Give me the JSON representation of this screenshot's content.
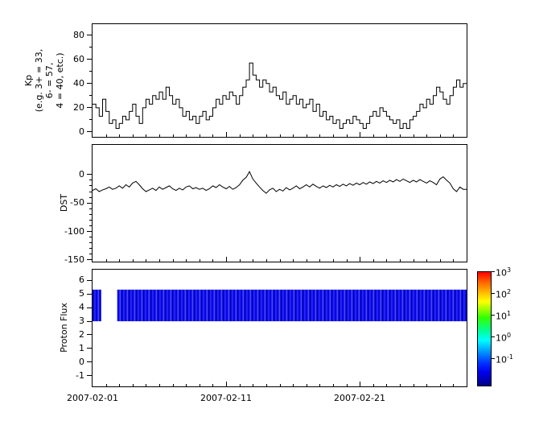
{
  "figure": {
    "background": "#ffffff",
    "axis_color": "#000000",
    "x_axis": {
      "tick_labels": [
        "2007-02-01",
        "2007-02-11",
        "2007-02-21"
      ],
      "tick_days": [
        0,
        10,
        20
      ],
      "minor_tick_every_days": 1,
      "total_days": 28,
      "start_date": "2007-02-01"
    }
  },
  "chart_data": [
    {
      "type": "line",
      "name": "Kp",
      "panel": "kp",
      "step": true,
      "dt_days": 0.25,
      "x_origin_date": "2007-02-01",
      "color": "#000000",
      "ylabel_lines": [
        "Kp",
        "(e.g. 3+ = 33,",
        "6- = 57,",
        "4 = 40, etc.)"
      ],
      "yticks": [
        80,
        60,
        40,
        20,
        0
      ],
      "yminor": [
        70,
        50,
        30,
        10
      ],
      "ylim": [
        -4,
        89
      ],
      "values": [
        23,
        20,
        13,
        27,
        17,
        7,
        10,
        3,
        7,
        13,
        10,
        17,
        23,
        13,
        7,
        20,
        27,
        23,
        30,
        27,
        33,
        27,
        37,
        30,
        23,
        27,
        20,
        13,
        17,
        10,
        13,
        7,
        13,
        17,
        10,
        13,
        20,
        27,
        23,
        30,
        27,
        33,
        30,
        23,
        30,
        37,
        43,
        57,
        47,
        43,
        37,
        43,
        40,
        33,
        37,
        30,
        27,
        33,
        23,
        27,
        30,
        23,
        27,
        20,
        23,
        27,
        17,
        23,
        13,
        17,
        10,
        13,
        7,
        10,
        3,
        7,
        10,
        7,
        13,
        10,
        7,
        3,
        7,
        13,
        17,
        13,
        20,
        17,
        13,
        10,
        7,
        10,
        3,
        7,
        3,
        10,
        13,
        17,
        23,
        20,
        27,
        23,
        30,
        37,
        33,
        27,
        23,
        30,
        37,
        43,
        37,
        40
      ]
    },
    {
      "type": "line",
      "name": "DST",
      "panel": "dst",
      "step": false,
      "dt_days": 0.25,
      "x_origin_date": "2007-02-01",
      "color": "#000000",
      "ylabel": "DST",
      "yticks": [
        0,
        -50,
        -100,
        -150
      ],
      "yminor": [
        -10,
        -20,
        -30,
        -40,
        -60,
        -70,
        -80,
        -90,
        -110,
        -120,
        -130,
        -140
      ],
      "ylim": [
        -153,
        52
      ],
      "values": [
        -28,
        -25,
        -30,
        -27,
        -25,
        -22,
        -26,
        -24,
        -20,
        -24,
        -18,
        -22,
        -15,
        -12,
        -18,
        -25,
        -30,
        -27,
        -24,
        -28,
        -22,
        -26,
        -23,
        -20,
        -25,
        -28,
        -24,
        -27,
        -22,
        -20,
        -25,
        -23,
        -26,
        -24,
        -28,
        -25,
        -20,
        -23,
        -18,
        -22,
        -25,
        -21,
        -26,
        -23,
        -18,
        -10,
        -5,
        5,
        -8,
        -15,
        -22,
        -28,
        -33,
        -27,
        -24,
        -30,
        -26,
        -29,
        -23,
        -27,
        -24,
        -20,
        -25,
        -22,
        -18,
        -22,
        -17,
        -21,
        -24,
        -20,
        -23,
        -19,
        -22,
        -18,
        -21,
        -17,
        -20,
        -16,
        -19,
        -15,
        -18,
        -14,
        -17,
        -13,
        -16,
        -12,
        -15,
        -11,
        -14,
        -10,
        -13,
        -9,
        -12,
        -8,
        -11,
        -14,
        -10,
        -13,
        -9,
        -12,
        -15,
        -11,
        -14,
        -18,
        -8,
        -4,
        -10,
        -15,
        -25,
        -30,
        -22,
        -26
      ]
    },
    {
      "type": "heatmap",
      "name": "Proton Flux",
      "panel": "proton",
      "ylabel": "Proton Flux",
      "yticks": [
        6,
        5,
        4,
        3,
        2,
        1,
        0,
        -1
      ],
      "ylim": [
        -1.8,
        6.8
      ],
      "band_y_range": [
        3.0,
        5.33
      ],
      "segments_days": [
        [
          0,
          0.65
        ],
        [
          1.85,
          28
        ]
      ],
      "approx_log10_flux": -1,
      "base_color": "#1414e6",
      "stripe_colors": [
        "#0000b4",
        "#2828ff",
        "#0000dc",
        "#4646ff"
      ],
      "colorbar": {
        "tick_exponents": [
          3,
          2,
          1,
          0,
          -1
        ],
        "log_range_top_bottom": [
          3,
          -2.2
        ],
        "gradient_stops": [
          [
            "#ff0000",
            0
          ],
          [
            "#ff6600",
            9
          ],
          [
            "#ffcc00",
            20
          ],
          [
            "#ffff00",
            26
          ],
          [
            "#33ff00",
            40
          ],
          [
            "#00ff99",
            52
          ],
          [
            "#00ffff",
            60
          ],
          [
            "#0099ff",
            70
          ],
          [
            "#0033ff",
            80
          ],
          [
            "#0000ee",
            88
          ],
          [
            "#000088",
            100
          ]
        ]
      }
    }
  ]
}
